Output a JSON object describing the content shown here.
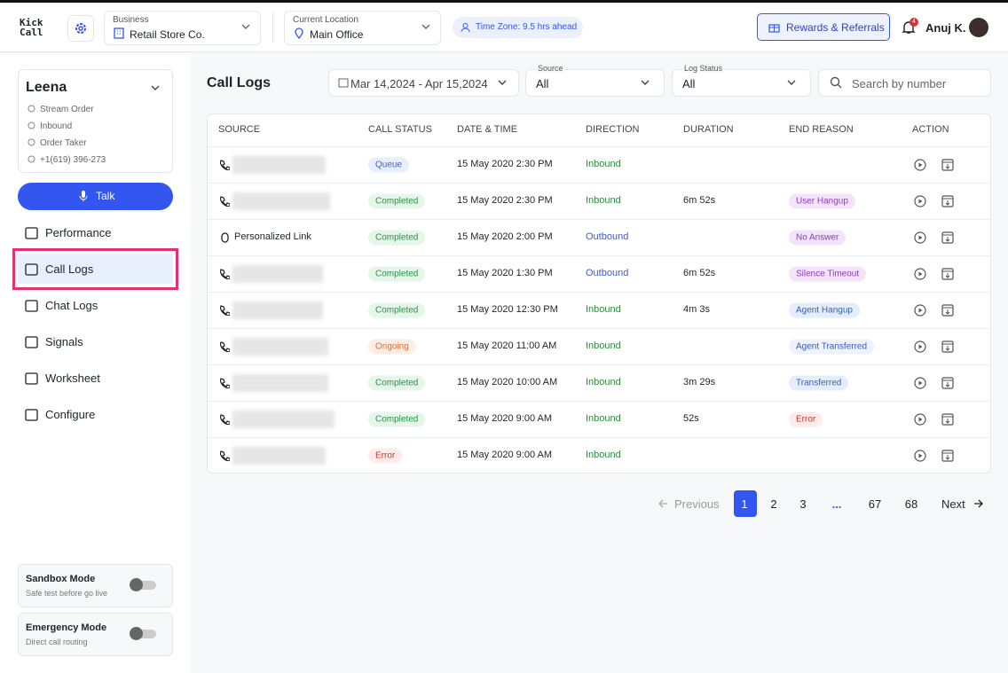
{
  "header": {
    "logo": [
      "Kick",
      "Call"
    ],
    "business_label": "Business",
    "business": "Retail Store Co.",
    "location_label": "Current Location",
    "location": "Main Office",
    "timezone": "Time Zone: 9.5 hrs ahead",
    "rewards": "Rewards & Referrals",
    "notifications": "4",
    "user": "Anuj K."
  },
  "sidebar": {
    "agent": "Leena",
    "details": [
      "Stream Order",
      "Inbound",
      "Order Taker",
      "+1(619) 396-273"
    ],
    "talk": "Talk",
    "nav": [
      "Performance",
      "Call Logs",
      "Chat Logs",
      "Signals",
      "Worksheet",
      "Configure"
    ],
    "toggles": [
      {
        "title": "Sandbox Mode",
        "description": "Safe test before go live"
      },
      {
        "title": "Emergency Mode",
        "description": "Direct call routing"
      }
    ]
  },
  "main": {
    "title": "Call Logs",
    "date_range": "Mar 14,2024 - Apr 15,2024",
    "source_label": "Source",
    "source": "All",
    "status_label": "Log Status",
    "status": "All",
    "search": "Search by number",
    "table": {
      "columns": [
        "SOURCE",
        "CALL STATUS",
        "DATE & TIME",
        "DIRECTION",
        "DURATION",
        "END REASON",
        "ACTION"
      ],
      "rows": [
        [
          null,
          "Queue",
          "15 May 2020 2:30 PM",
          "Inbound",
          null,
          null
        ],
        [
          null,
          "Completed",
          "15 May 2020 2:30 PM",
          "Inbound",
          "6m 52s",
          "User Hangup"
        ],
        [
          "Personalized Link",
          "Completed",
          "15 May 2020 2:00 PM",
          "Outbound",
          null,
          "No Answer"
        ],
        [
          null,
          "Completed",
          "15 May 2020 1:30 PM",
          "Outbound",
          "6m 52s",
          "Silence Timeout"
        ],
        [
          null,
          "Completed",
          "15 May 2020 12:30 PM",
          "Inbound",
          "4m 3s",
          "Agent Hangup"
        ],
        [
          null,
          "Ongoing",
          "15 May 2020 11:00 AM",
          "Inbound",
          null,
          "Agent Transferred"
        ],
        [
          null,
          "Completed",
          "15 May 2020 10:00 AM",
          "Inbound",
          "3m 29s",
          "Transferred"
        ],
        [
          null,
          "Completed",
          "15 May 2020 9:00 AM",
          "Inbound",
          "52s",
          "Error"
        ],
        [
          null,
          "Error",
          "15 May 2020 9:00 AM",
          "Inbound",
          null,
          null
        ]
      ]
    },
    "pagination": {
      "previous": "Previous",
      "pages": [
        "1",
        "2",
        "3",
        "...",
        "67",
        "68"
      ],
      "next": "Next"
    }
  }
}
